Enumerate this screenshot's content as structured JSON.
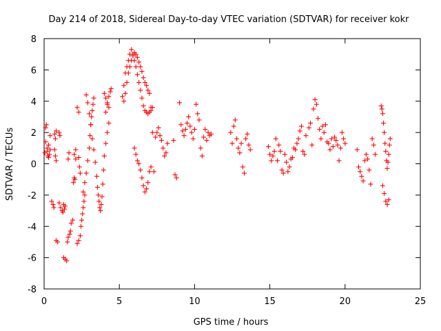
{
  "chart_data": {
    "type": "scatter",
    "title": "Day 214 of 2018, Sidereal Day-to-day VTEC variation (SDTVAR) for receiver kokr",
    "xlabel": "GPS time / hours",
    "ylabel": "SDTVAR / TECUs",
    "xlim": [
      0,
      25
    ],
    "ylim": [
      -8,
      8
    ],
    "x_ticks": [
      "0",
      "5",
      "10",
      "15",
      "20",
      "25"
    ],
    "y_ticks": [
      "-8",
      "-6",
      "-4",
      "-2",
      "0",
      "2",
      "4",
      "6",
      "8"
    ],
    "grid": false,
    "marker": "plus",
    "color": "#ff0000",
    "series": [
      {
        "name": "SDTVAR",
        "x": [
          0.05,
          0.1,
          0.15,
          0.2,
          0.25,
          0.3,
          0.35,
          0.4,
          0.1,
          0.2,
          0.3,
          0.4,
          0.5,
          0.6,
          0.65,
          0.7,
          0.75,
          0.8,
          0.8,
          0.9,
          1.0,
          1.1,
          1.2,
          1.25,
          1.3,
          1.35,
          1.4,
          1.3,
          1.4,
          1.5,
          1.55,
          1.6,
          1.7,
          1.75,
          1.8,
          1.9,
          1.95,
          2.0,
          2.05,
          2.1,
          2.0,
          2.1,
          2.2,
          2.3,
          2.4,
          2.45,
          2.5,
          2.55,
          2.6,
          2.65,
          2.7,
          2.6,
          2.7,
          2.8,
          2.9,
          3.0,
          3.05,
          3.1,
          3.15,
          3.2,
          3.25,
          3.3,
          2.8,
          2.9,
          3.0,
          3.1,
          3.2,
          3.3,
          3.4,
          3.5,
          3.55,
          3.6,
          3.65,
          3.7,
          3.75,
          3.8,
          3.85,
          3.9,
          3.95,
          4.0,
          4.1,
          4.2,
          4.3,
          4.1,
          4.2,
          4.3,
          4.4,
          4.45,
          4.0,
          4.1,
          4.2,
          4.3,
          0.7,
          0.75,
          0.8,
          1.0,
          1.05,
          1.6,
          1.65,
          2.2,
          2.3,
          2.3,
          2.35,
          2.4,
          5.2,
          5.3,
          5.4,
          5.5,
          5.6,
          5.7,
          5.8,
          5.9,
          6.0,
          6.1,
          6.2,
          6.3,
          6.4,
          6.5,
          6.6,
          6.7,
          6.8,
          6.9,
          7.0,
          7.1,
          7.2,
          5.3,
          5.4,
          5.5,
          5.6,
          5.7,
          5.8,
          5.9,
          6.0,
          6.1,
          6.2,
          6.3,
          6.4,
          6.5,
          6.6,
          6.7,
          6.8,
          6.9,
          7.0,
          7.1,
          7.2,
          6.0,
          6.1,
          6.2,
          6.3,
          6.4,
          6.5,
          6.6,
          6.7,
          6.8,
          6.9,
          7.0,
          7.1,
          7.3,
          7.4,
          7.5,
          7.6,
          7.7,
          7.8,
          7.9,
          8.0,
          8.1,
          8.2,
          8.6,
          8.7,
          8.8,
          9.0,
          9.1,
          9.2,
          9.3,
          9.4,
          9.5,
          9.6,
          9.7,
          9.8,
          9.9,
          10.0,
          10.1,
          10.2,
          10.3,
          10.4,
          10.5,
          10.6,
          10.7,
          10.8,
          10.9,
          11.0,
          11.1,
          12.4,
          12.5,
          12.6,
          12.7,
          12.8,
          12.9,
          13.0,
          13.1,
          13.2,
          13.3,
          13.4,
          13.5,
          13.6,
          13.7,
          14.9,
          15.0,
          15.1,
          15.2,
          15.3,
          15.4,
          15.5,
          15.6,
          15.7,
          15.8,
          15.9,
          16.0,
          16.1,
          16.2,
          16.3,
          16.4,
          16.5,
          16.6,
          16.7,
          16.8,
          16.9,
          17.0,
          17.1,
          17.2,
          17.3,
          17.4,
          17.6,
          17.7,
          17.8,
          17.9,
          18.0,
          18.1,
          18.2,
          18.3,
          18.4,
          18.5,
          18.6,
          18.7,
          18.8,
          18.9,
          19.0,
          19.1,
          19.2,
          19.3,
          19.4,
          19.5,
          19.6,
          19.7,
          19.8,
          19.9,
          20.0,
          20.8,
          20.9,
          21.0,
          21.1,
          21.2,
          21.3,
          21.4,
          21.5,
          21.6,
          21.7,
          21.8,
          21.9,
          22.0,
          22.4,
          22.45,
          22.5,
          22.55,
          22.6,
          22.65,
          22.7,
          22.75,
          22.8,
          22.85,
          22.9,
          22.95,
          23.0,
          22.5,
          22.6,
          22.7,
          22.8,
          22.9
        ],
        "y": [
          0.7,
          2.3,
          2.5,
          0.8,
          0.5,
          1.2,
          0.6,
          0.9,
          1.4,
          1.0,
          0.4,
          1.8,
          -2.4,
          -2.6,
          -2.8,
          1.9,
          0.5,
          0.2,
          -4.9,
          -5.0,
          -2.5,
          -2.8,
          -3.0,
          -3.1,
          -2.6,
          -2.9,
          -2.7,
          -6.0,
          -6.1,
          -6.2,
          -5.0,
          -4.7,
          -4.5,
          -4.3,
          -3.8,
          -3.6,
          -1.2,
          -0.9,
          -1.0,
          0.3,
          0.6,
          0.9,
          -5.1,
          -4.9,
          -4.6,
          -4.0,
          -3.6,
          -3.2,
          -2.8,
          -2.4,
          -2.0,
          -1.8,
          -1.2,
          -0.6,
          0.2,
          1.0,
          1.8,
          2.5,
          3.0,
          3.4,
          3.8,
          4.2,
          4.4,
          3.9,
          3.2,
          2.5,
          1.6,
          0.9,
          0.1,
          -0.8,
          -1.5,
          -2.0,
          -2.4,
          -2.8,
          -3.0,
          -2.6,
          -2.1,
          -1.3,
          -0.4,
          0.5,
          1.3,
          2.0,
          2.6,
          3.3,
          3.8,
          4.3,
          4.6,
          4.8,
          4.5,
          4.2,
          3.9,
          3.6,
          0.9,
          1.6,
          2.1,
          2.0,
          1.8,
          0.3,
          0.7,
          3.6,
          3.3,
          0.4,
          -0.2,
          -0.6,
          4.3,
          5.0,
          5.8,
          6.2,
          6.6,
          7.0,
          7.3,
          7.0,
          6.6,
          6.2,
          5.7,
          5.2,
          4.7,
          4.2,
          3.7,
          3.4,
          3.3,
          3.2,
          3.3,
          3.4,
          3.6,
          4.0,
          4.5,
          5.2,
          5.8,
          6.2,
          6.6,
          6.9,
          7.1,
          7.0,
          6.8,
          6.5,
          6.2,
          5.9,
          5.5,
          5.2,
          5.0,
          4.7,
          4.5,
          3.6,
          2.0,
          1.0,
          0.6,
          0.2,
          0.0,
          -0.4,
          -0.9,
          -1.4,
          -1.8,
          -1.6,
          -1.2,
          -0.5,
          -0.2,
          -0.5,
          1.7,
          2.0,
          2.3,
          1.8,
          1.5,
          1.0,
          0.5,
          0.7,
          1.3,
          1.5,
          -0.7,
          -0.9,
          3.9,
          2.5,
          2.1,
          1.8,
          2.2,
          2.6,
          3.0,
          2.4,
          2.0,
          1.6,
          2.2,
          3.8,
          3.2,
          2.8,
          1.0,
          0.5,
          1.7,
          2.2,
          1.5,
          2.0,
          1.8,
          1.9,
          2.0,
          1.3,
          2.4,
          2.8,
          1.6,
          1.0,
          0.7,
          1.3,
          -0.2,
          -0.6,
          1.6,
          1.9,
          1.2,
          0.9,
          1.1,
          0.6,
          0.2,
          0.5,
          0.8,
          1.6,
          0.2,
          1.2,
          0.8,
          -0.4,
          -0.6,
          0.6,
          0.1,
          -0.5,
          -0.2,
          0.3,
          0.4,
          1.0,
          0.9,
          1.3,
          1.6,
          2.1,
          2.4,
          0.8,
          0.6,
          1.8,
          2.3,
          2.6,
          1.2,
          3.5,
          4.1,
          3.8,
          2.9,
          2.2,
          1.6,
          2.4,
          2.0,
          2.5,
          1.4,
          1.3,
          0.9,
          1.6,
          1.1,
          1.7,
          1.5,
          1.2,
          0.2,
          1.0,
          2.0,
          1.6,
          1.3,
          0.9,
          -0.2,
          -0.5,
          -0.8,
          -1.1,
          0.2,
          0.6,
          0.3,
          -0.4,
          -1.3,
          1.6,
          1.2,
          0.6,
          3.7,
          3.5,
          3.2,
          2.6,
          2.0,
          1.3,
          0.8,
          0.2,
          -0.3,
          0.1,
          0.6,
          1.2,
          1.6,
          -1.4,
          -1.9,
          -2.4,
          -2.6,
          -2.3
        ]
      }
    ]
  }
}
